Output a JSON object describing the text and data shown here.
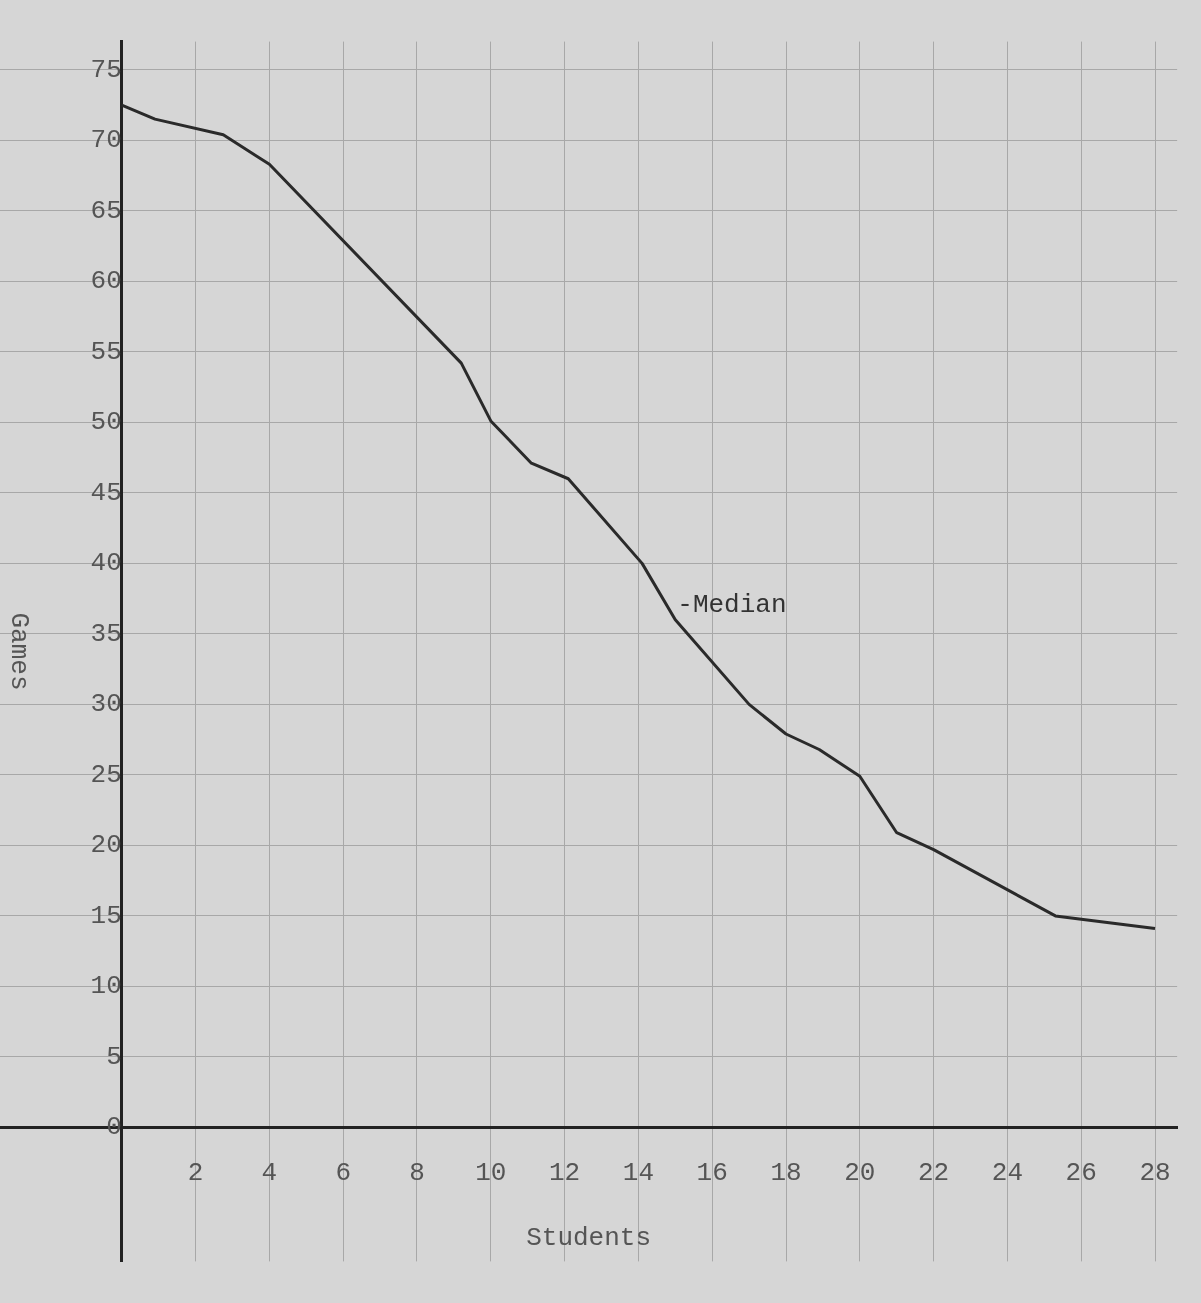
{
  "chart_data": {
    "type": "line",
    "xlabel": "Students",
    "ylabel": "Games",
    "x": [
      0,
      0.9,
      2.75,
      4,
      9.2,
      10,
      11.1,
      12.1,
      14.1,
      15,
      17,
      18,
      18.9,
      20,
      21,
      22,
      25.3,
      28
    ],
    "series": [
      {
        "color": "#2a2a2a",
        "values": [
          72.5,
          71.5,
          70.4,
          68.3,
          54.2,
          50.1,
          47.1,
          46,
          40,
          36,
          30,
          27.9,
          26.8,
          24.9,
          20.9,
          19.7,
          15,
          14.1
        ]
      }
    ],
    "xlim": [
      -3.3,
      28.6
    ],
    "xticks": [
      2,
      4,
      6,
      8,
      10,
      12,
      14,
      16,
      18,
      20,
      22,
      24,
      26,
      28
    ],
    "ylim": [
      -9.5,
      77
    ],
    "yticks": [
      0,
      5,
      10,
      15,
      20,
      25,
      30,
      35,
      40,
      45,
      50,
      55,
      60,
      65,
      70,
      75
    ],
    "grid": true,
    "legend": false,
    "marker": "none",
    "line_style": "solid",
    "annotations": [
      {
        "text": "-Median",
        "x": 15,
        "y": 36
      }
    ]
  }
}
